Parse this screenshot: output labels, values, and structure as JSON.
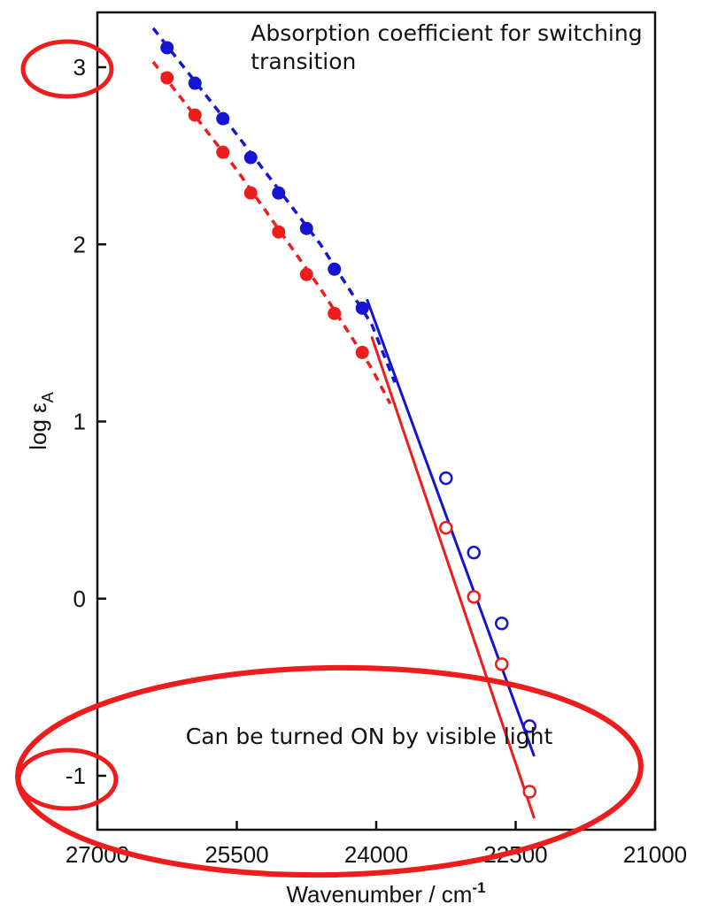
{
  "chart_data": {
    "type": "scatter",
    "title": "",
    "xlabel": "Wavenumber / cm",
    "xlabel_superscript": "-1",
    "ylabel": "log ε",
    "ylabel_subscript": "A",
    "xlim": [
      27000,
      21000
    ],
    "ylim": [
      -1.3,
      3.3
    ],
    "x_reversed": true,
    "grid": false,
    "x_ticks": [
      27000,
      25500,
      24000,
      22500,
      21000
    ],
    "x_tick_labels": [
      "27000",
      "25500",
      "24000",
      "22500",
      "21000"
    ],
    "y_ticks": [
      3,
      2,
      1,
      0,
      -1
    ],
    "y_tick_labels": [
      "3",
      "2",
      "1",
      "0",
      "-1"
    ],
    "series": [
      {
        "color": "#1414d2",
        "points_filled": [
          {
            "x": 26250,
            "y": 3.11
          },
          {
            "x": 25950,
            "y": 2.91
          },
          {
            "x": 25650,
            "y": 2.71
          },
          {
            "x": 25350,
            "y": 2.49
          },
          {
            "x": 25050,
            "y": 2.29
          },
          {
            "x": 24750,
            "y": 2.09
          },
          {
            "x": 24450,
            "y": 1.86
          },
          {
            "x": 24150,
            "y": 1.64
          }
        ],
        "points_open": [
          {
            "x": 23250,
            "y": 0.68
          },
          {
            "x": 22950,
            "y": 0.26
          },
          {
            "x": 22650,
            "y": -0.14
          },
          {
            "x": 22350,
            "y": -0.72
          }
        ],
        "dashed_fit": [
          {
            "x": 26400,
            "y": 3.22
          },
          {
            "x": 25500,
            "y": 2.62
          },
          {
            "x": 24600,
            "y": 2.0
          },
          {
            "x": 24050,
            "y": 1.55
          },
          {
            "x": 23800,
            "y": 1.22
          }
        ],
        "solid_fit": [
          {
            "x": 24100,
            "y": 1.69
          },
          {
            "x": 22300,
            "y": -0.89
          }
        ]
      },
      {
        "color": "#ee1c1c",
        "points_filled": [
          {
            "x": 26250,
            "y": 2.94
          },
          {
            "x": 25950,
            "y": 2.73
          },
          {
            "x": 25650,
            "y": 2.52
          },
          {
            "x": 25350,
            "y": 2.29
          },
          {
            "x": 25050,
            "y": 2.07
          },
          {
            "x": 24750,
            "y": 1.83
          },
          {
            "x": 24450,
            "y": 1.61
          },
          {
            "x": 24150,
            "y": 1.39
          }
        ],
        "points_open": [
          {
            "x": 23250,
            "y": 0.4
          },
          {
            "x": 22950,
            "y": 0.01
          },
          {
            "x": 22650,
            "y": -0.37
          },
          {
            "x": 22350,
            "y": -1.09
          }
        ],
        "dashed_fit": [
          {
            "x": 26400,
            "y": 3.03
          },
          {
            "x": 25500,
            "y": 2.42
          },
          {
            "x": 24600,
            "y": 1.75
          },
          {
            "x": 24050,
            "y": 1.3
          },
          {
            "x": 23850,
            "y": 1.1
          }
        ],
        "solid_fit": [
          {
            "x": 24050,
            "y": 1.48
          },
          {
            "x": 22300,
            "y": -1.24
          }
        ]
      }
    ],
    "annotations": [
      {
        "text": "Absorption coefficient for switching",
        "x": 25350,
        "y": 3.15
      },
      {
        "text": "transition",
        "x": 25350,
        "y": 2.99
      },
      {
        "text": "Can be turned ON by visible light",
        "x": 26050,
        "y": -0.82
      }
    ],
    "highlights": [
      {
        "shape": "ellipse",
        "target": "y tick label 3",
        "color": "#ee1c1c"
      },
      {
        "shape": "ellipse",
        "target": "y tick label -1",
        "color": "#ee1c1c"
      },
      {
        "shape": "ellipse",
        "target": "lower region of plot",
        "color": "#ee1c1c"
      }
    ]
  }
}
